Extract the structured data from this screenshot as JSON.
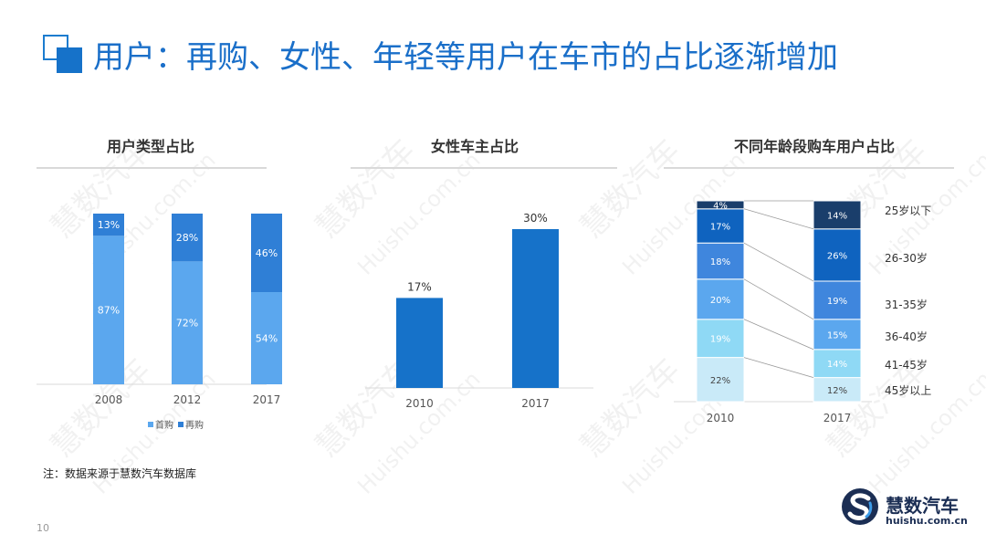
{
  "slide": {
    "title": "用户：再购、女性、年轻等用户在车市的占比逐渐增加",
    "note": "注：数据来源于慧数汽车数据库",
    "page_number": "10",
    "brand_name": "慧数汽车",
    "brand_url": "huishu.com.cn",
    "watermark_cn": "慧数汽车",
    "watermark_en": "Huishu.com.cn"
  },
  "colors": {
    "title": "#1a6fc9",
    "first_purchase": "#5ba7ee",
    "repurchase": "#2f7fd6",
    "female": "#1672c9",
    "age": [
      "#c9eaf8",
      "#8fd9f5",
      "#5ba7ee",
      "#3f86dd",
      "#0f63bf",
      "#1a3e6b"
    ]
  },
  "chart_data": [
    {
      "type": "bar",
      "stacked": true,
      "title": "用户类型占比",
      "categories": [
        "2008",
        "2012",
        "2017"
      ],
      "series": [
        {
          "name": "首购",
          "values": [
            87,
            72,
            54
          ],
          "labels": [
            "87%",
            "72%",
            "54%"
          ]
        },
        {
          "name": "再购",
          "values": [
            13,
            28,
            46
          ],
          "labels": [
            "13%",
            "28%",
            "46%"
          ]
        }
      ],
      "ylim": [
        0,
        100
      ],
      "legend": "bottom"
    },
    {
      "type": "bar",
      "title": "女性车主占比",
      "categories": [
        "2010",
        "2017"
      ],
      "values": [
        17,
        30
      ],
      "labels": [
        "17%",
        "30%"
      ]
    },
    {
      "type": "bar",
      "stacked": true,
      "title": "不同年龄段购车用户占比",
      "categories": [
        "2010",
        "2017"
      ],
      "series": [
        {
          "name": "45岁以上",
          "values": [
            22,
            12
          ],
          "labels": [
            "22%",
            "12%"
          ]
        },
        {
          "name": "41-45岁",
          "values": [
            19,
            14
          ],
          "labels": [
            "19%",
            "14%"
          ]
        },
        {
          "name": "36-40岁",
          "values": [
            20,
            15
          ],
          "labels": [
            "20%",
            "15%"
          ]
        },
        {
          "name": "31-35岁",
          "values": [
            18,
            19
          ],
          "labels": [
            "18%",
            "19%"
          ]
        },
        {
          "name": "26-30岁",
          "values": [
            17,
            26
          ],
          "labels": [
            "17%",
            "26%"
          ]
        },
        {
          "name": "25岁以下",
          "values": [
            4,
            14
          ],
          "labels": [
            "4%",
            "14%"
          ]
        }
      ],
      "ylim": [
        0,
        100
      ],
      "legend": "right"
    }
  ]
}
